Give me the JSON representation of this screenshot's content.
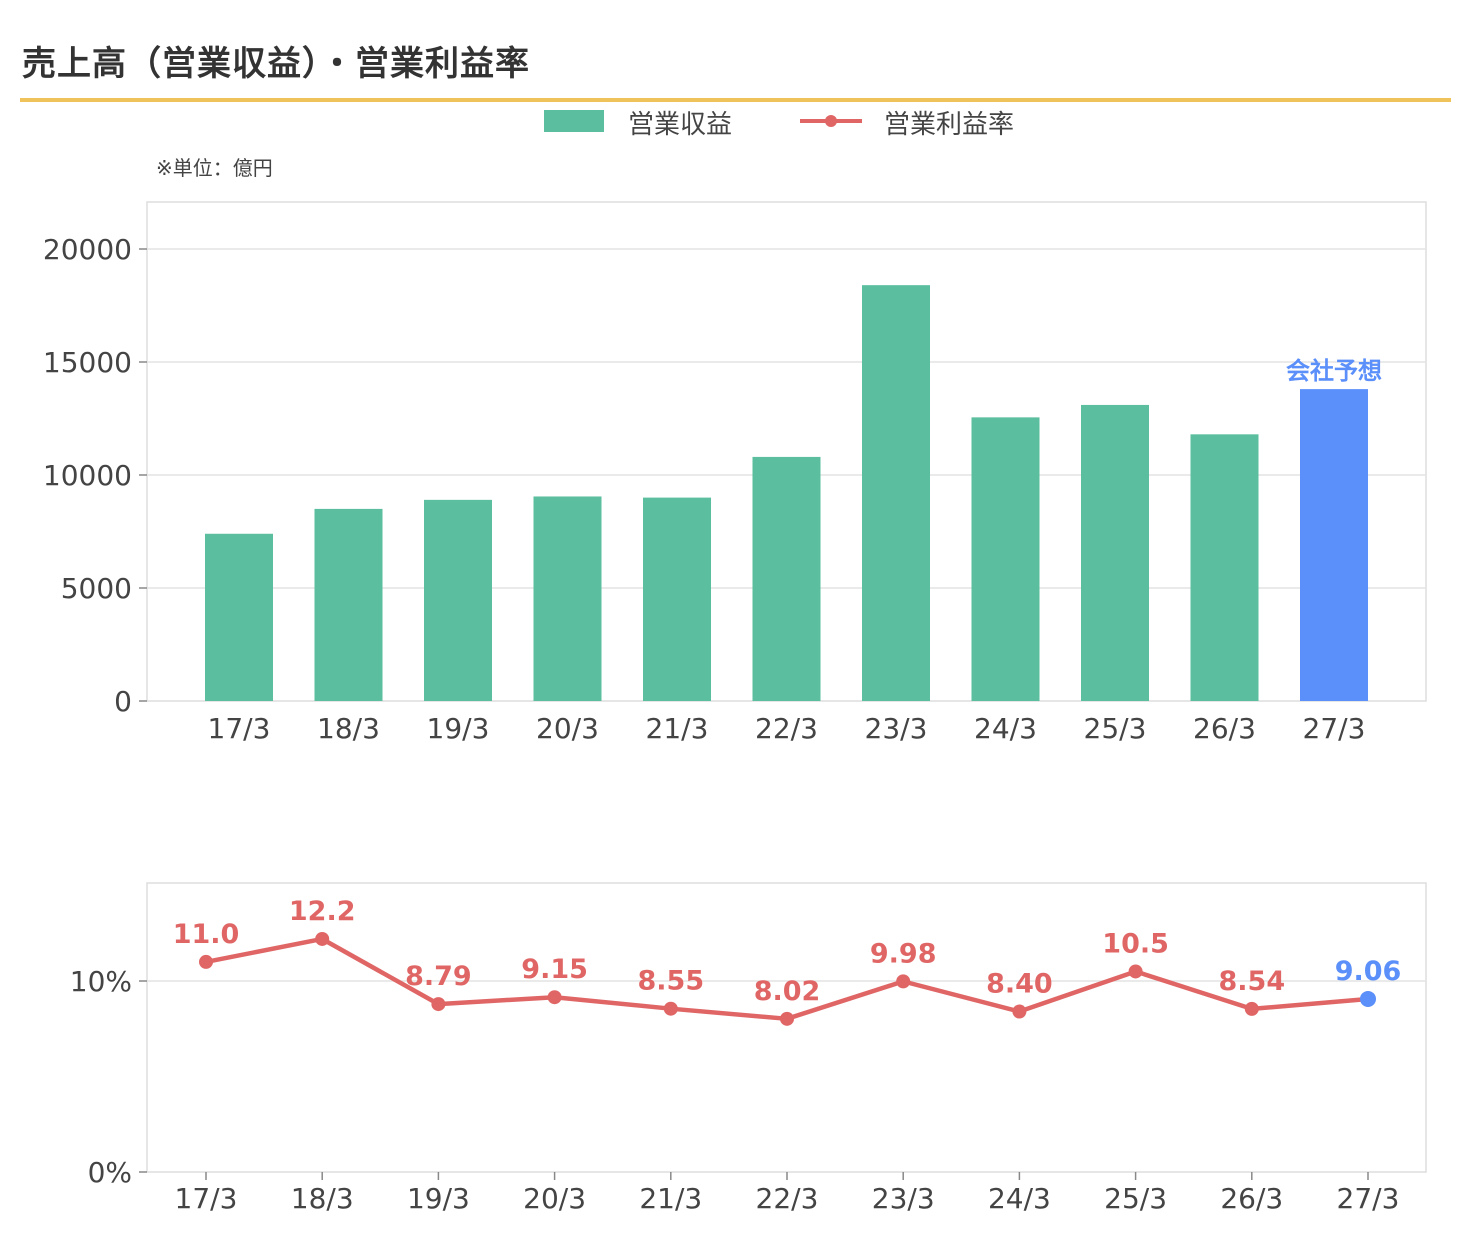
{
  "title": "売上高（営業収益）・営業利益率",
  "legend": {
    "bar_label": "営業収益",
    "line_label": "営業利益率"
  },
  "unit_note": "※単位：億円",
  "forecast_label": "会社予想",
  "colors": {
    "bar": "#5bbf9f",
    "forecast": "#5b8ff9",
    "line": "#e06666",
    "accent_rule": "#f0c35a"
  },
  "chart_data": [
    {
      "type": "bar",
      "categories": [
        "17/3",
        "18/3",
        "19/3",
        "20/3",
        "21/3",
        "22/3",
        "23/3",
        "24/3",
        "25/3",
        "26/3",
        "27/3"
      ],
      "series": [
        {
          "name": "営業収益",
          "values": [
            7400,
            8500,
            8900,
            9050,
            9000,
            10800,
            18400,
            12550,
            13100,
            11800,
            13800
          ]
        }
      ],
      "forecast_index": 10,
      "ylim": [
        0,
        22000
      ],
      "yticks": [
        0,
        5000,
        10000,
        15000,
        20000
      ],
      "ytick_labels": [
        "0",
        "5000",
        "10000",
        "15000",
        "20000"
      ],
      "grid": true
    },
    {
      "type": "line",
      "categories": [
        "17/3",
        "18/3",
        "19/3",
        "20/3",
        "21/3",
        "22/3",
        "23/3",
        "24/3",
        "25/3",
        "26/3",
        "27/3"
      ],
      "series": [
        {
          "name": "営業利益率",
          "values": [
            11.0,
            12.2,
            8.79,
            9.15,
            8.55,
            8.02,
            9.98,
            8.4,
            10.5,
            8.54,
            9.06
          ],
          "labels": [
            "11.0",
            "12.2",
            "8.79",
            "9.15",
            "8.55",
            "8.02",
            "9.98",
            "8.40",
            "10.5",
            "8.54",
            "9.06"
          ]
        }
      ],
      "forecast_index": 10,
      "ylim": [
        0,
        15
      ],
      "yticks": [
        0,
        10
      ],
      "ytick_labels": [
        "0%",
        "10%"
      ],
      "grid": true
    }
  ]
}
